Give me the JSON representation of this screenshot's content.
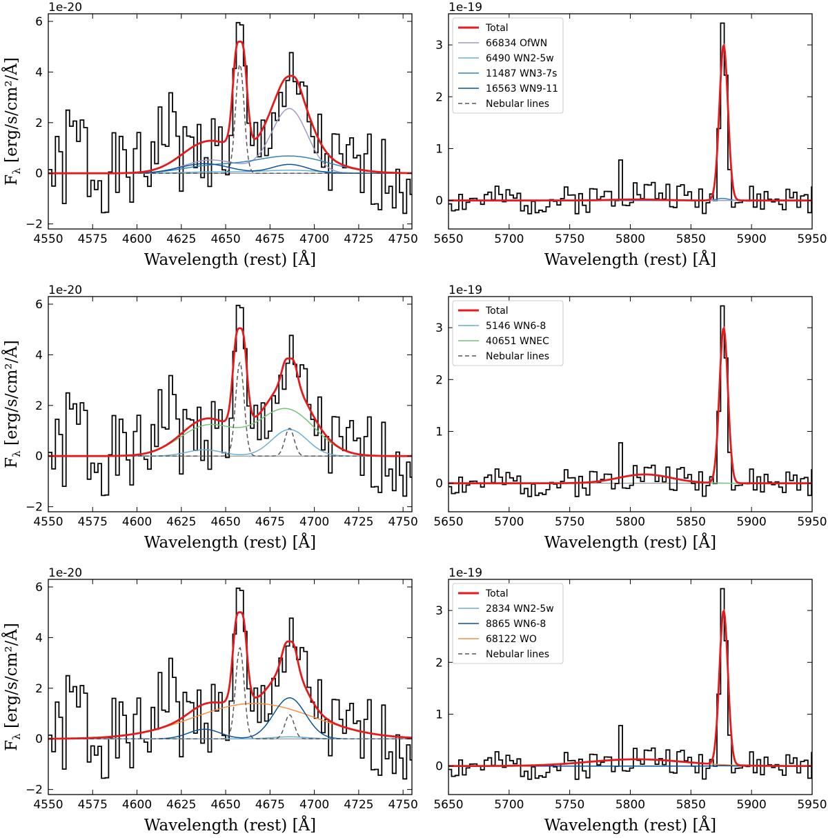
{
  "figure": {
    "xlabel": "Wavelength (rest) [Å]",
    "ylabel_main": "F",
    "ylabel_sub": "λ",
    "ylabel_units": " [erg/s/cm²/Å]"
  },
  "colors": {
    "observed": "#000000",
    "total": "#e41a1c",
    "OfWN": "#9e9ac8",
    "WN2_5w": "#6baed6",
    "WN3_7s": "#3182bd",
    "WN9_11": "#08519c",
    "WN6_8_light": "#6baed6",
    "WN6_8_dark": "#08519c",
    "WNEC": "#74c476",
    "WO": "#fd8d3c",
    "nebular": "#555555",
    "zero": "#7f7f7f"
  },
  "chart_data": [
    {
      "type": "line",
      "panel": "row1-left",
      "offset_text": "1e-20",
      "xlim": [
        4550,
        4755
      ],
      "ylim": [
        -2.2,
        6.3
      ],
      "xticks": [
        4550,
        4575,
        4600,
        4625,
        4650,
        4675,
        4700,
        4725,
        4750
      ],
      "yticks": [
        -2,
        0,
        2,
        4,
        6
      ],
      "legend": null,
      "observed_seed": 1,
      "components": [
        {
          "key": "OfWN",
          "name": "",
          "color": "#9e9ac8",
          "dash": false,
          "gaussians": [
            [
              4640,
              14,
              0.42
            ],
            [
              4686,
              10,
              2.5
            ],
            [
              4658,
              20,
              0.15
            ]
          ]
        },
        {
          "key": "WN2_5w",
          "name": "",
          "color": "#6baed6",
          "dash": false,
          "gaussians": [
            [
              4640,
              15,
              0.05
            ],
            [
              4686,
              18,
              0.12
            ]
          ]
        },
        {
          "key": "WN3_7s",
          "name": "",
          "color": "#3182bd",
          "dash": false,
          "gaussians": [
            [
              4640,
              16,
              0.25
            ],
            [
              4686,
              22,
              0.68
            ]
          ]
        },
        {
          "key": "WN9_11",
          "name": "",
          "color": "#08519c",
          "dash": false,
          "gaussians": [
            [
              4638,
              14,
              0.38
            ],
            [
              4686,
              10,
              0.35
            ]
          ]
        },
        {
          "key": "nebular",
          "name": "",
          "color": "#555555",
          "dash": true,
          "gaussians": [
            [
              4658,
              2.4,
              4.3
            ]
          ]
        }
      ],
      "total_color": "#e41a1c",
      "total_peaks": [
        [
          4658,
          5.2
        ],
        [
          4687,
          3.85
        ]
      ]
    },
    {
      "type": "line",
      "panel": "row1-right",
      "offset_text": "1e-19",
      "xlim": [
        5650,
        5950
      ],
      "ylim": [
        -0.55,
        3.6
      ],
      "xticks": [
        5650,
        5700,
        5750,
        5800,
        5850,
        5900,
        5950
      ],
      "yticks": [
        0,
        1,
        2,
        3
      ],
      "legend": [
        {
          "label": "Total",
          "color": "#e41a1c",
          "dash": false,
          "width": 3
        },
        {
          "label": "66834 OfWN",
          "color": "#9e9ac8",
          "dash": false,
          "width": 1.5
        },
        {
          "label": "6490 WN2-5w",
          "color": "#6baed6",
          "dash": false,
          "width": 1.5
        },
        {
          "label": "11487 WN3-7s",
          "color": "#3182bd",
          "dash": false,
          "width": 1.5
        },
        {
          "label": "16563 WN9-11",
          "color": "#08519c",
          "dash": false,
          "width": 1.5
        },
        {
          "label": "Nebular lines",
          "color": "#555555",
          "dash": true,
          "width": 1.5
        }
      ],
      "observed_seed": 2,
      "components": [
        {
          "key": "WN3_7s",
          "name": "",
          "color": "#3182bd",
          "dash": false,
          "gaussians": [
            [
              5876,
              5,
              0.04
            ]
          ]
        },
        {
          "key": "OfWN",
          "name": "",
          "color": "#9e9ac8",
          "dash": false,
          "gaussians": [
            [
              5805,
              20,
              0.02
            ]
          ]
        }
      ],
      "total_color": "#e41a1c",
      "total_peaks": [
        [
          5877,
          3.0
        ]
      ]
    },
    {
      "type": "line",
      "panel": "row2-left",
      "offset_text": "1e-20",
      "xlim": [
        4550,
        4755
      ],
      "ylim": [
        -2.2,
        6.3
      ],
      "xticks": [
        4550,
        4575,
        4600,
        4625,
        4650,
        4675,
        4700,
        4725,
        4750
      ],
      "yticks": [
        -2,
        0,
        2,
        4,
        6
      ],
      "legend": null,
      "observed_seed": 1,
      "components": [
        {
          "key": "WNEC",
          "name": "",
          "color": "#74c476",
          "dash": false,
          "gaussians": [
            [
              4640,
              16,
              1.2
            ],
            [
              4684,
              16,
              1.85
            ]
          ]
        },
        {
          "key": "WN6_8_light",
          "name": "",
          "color": "#6baed6",
          "dash": false,
          "gaussians": [
            [
              4638,
              10,
              0.25
            ],
            [
              4686,
              10,
              1.05
            ]
          ]
        },
        {
          "key": "nebular",
          "name": "",
          "color": "#555555",
          "dash": true,
          "gaussians": [
            [
              4658,
              2.4,
              3.7
            ],
            [
              4686,
              2.6,
              1.1
            ]
          ]
        }
      ],
      "total_color": "#e41a1c",
      "total_peaks": [
        [
          4658,
          5.05
        ],
        [
          4686,
          3.85
        ]
      ]
    },
    {
      "type": "line",
      "panel": "row2-right",
      "offset_text": "1e-19",
      "xlim": [
        5650,
        5950
      ],
      "ylim": [
        -0.55,
        3.6
      ],
      "xticks": [
        5650,
        5700,
        5750,
        5800,
        5850,
        5900,
        5950
      ],
      "yticks": [
        0,
        1,
        2,
        3
      ],
      "legend": [
        {
          "label": "Total",
          "color": "#e41a1c",
          "dash": false,
          "width": 3
        },
        {
          "label": "5146 WN6-8",
          "color": "#6baed6",
          "dash": false,
          "width": 1.5
        },
        {
          "label": "40651 WNEC",
          "color": "#74c476",
          "dash": false,
          "width": 1.5
        },
        {
          "label": "Nebular lines",
          "color": "#555555",
          "dash": true,
          "width": 1.5
        }
      ],
      "observed_seed": 2,
      "components": [
        {
          "key": "WNEC",
          "name": "",
          "color": "#74c476",
          "dash": false,
          "gaussians": [
            [
              5812,
              22,
              0.17
            ]
          ]
        }
      ],
      "total_color": "#e41a1c",
      "total_peaks": [
        [
          5877,
          3.0
        ]
      ]
    },
    {
      "type": "line",
      "panel": "row3-left",
      "offset_text": "1e-20",
      "xlim": [
        4550,
        4755
      ],
      "ylim": [
        -2.2,
        6.3
      ],
      "xticks": [
        4550,
        4575,
        4600,
        4625,
        4650,
        4675,
        4700,
        4725,
        4750
      ],
      "yticks": [
        -2,
        0,
        2,
        4,
        6
      ],
      "legend": null,
      "observed_seed": 1,
      "components": [
        {
          "key": "WO",
          "name": "",
          "color": "#fd8d3c",
          "dash": false,
          "gaussians": [
            [
              4666,
              34,
              1.4
            ]
          ]
        },
        {
          "key": "WN6_8_dark",
          "name": "",
          "color": "#08519c",
          "dash": false,
          "gaussians": [
            [
              4638,
              9,
              0.38
            ],
            [
              4686,
              9,
              1.62
            ]
          ]
        },
        {
          "key": "WN2_5w",
          "name": "",
          "color": "#6baed6",
          "dash": false,
          "gaussians": [
            [
              4686,
              10,
              0.08
            ]
          ]
        },
        {
          "key": "nebular",
          "name": "",
          "color": "#555555",
          "dash": true,
          "gaussians": [
            [
              4658,
              2.4,
              3.6
            ],
            [
              4686,
              2.6,
              0.95
            ]
          ]
        }
      ],
      "total_color": "#e41a1c",
      "total_peaks": [
        [
          4658,
          5.0
        ],
        [
          4686,
          3.85
        ]
      ]
    },
    {
      "type": "line",
      "panel": "row3-right",
      "offset_text": "1e-19",
      "xlim": [
        5650,
        5950
      ],
      "ylim": [
        -0.55,
        3.6
      ],
      "xticks": [
        5650,
        5700,
        5750,
        5800,
        5850,
        5900,
        5950
      ],
      "yticks": [
        0,
        1,
        2,
        3
      ],
      "legend": [
        {
          "label": "Total",
          "color": "#e41a1c",
          "dash": false,
          "width": 3
        },
        {
          "label": "2834 WN2-5w",
          "color": "#6baed6",
          "dash": false,
          "width": 1.5
        },
        {
          "label": "8865 WN6-8",
          "color": "#08519c",
          "dash": false,
          "width": 1.5
        },
        {
          "label": "68122 WO",
          "color": "#fd8d3c",
          "dash": false,
          "width": 1.5
        },
        {
          "label": "Nebular lines",
          "color": "#555555",
          "dash": true,
          "width": 1.5
        }
      ],
      "observed_seed": 2,
      "components": [
        {
          "key": "WO",
          "name": "",
          "color": "#fd8d3c",
          "dash": false,
          "gaussians": [
            [
              5805,
              40,
              0.13
            ]
          ]
        },
        {
          "key": "WN6_8_dark",
          "name": "",
          "color": "#08519c",
          "dash": false,
          "gaussians": [
            [
              5876,
              5,
              0.01
            ]
          ]
        }
      ],
      "total_color": "#e41a1c",
      "total_peaks": [
        [
          5877,
          3.0
        ]
      ]
    }
  ]
}
